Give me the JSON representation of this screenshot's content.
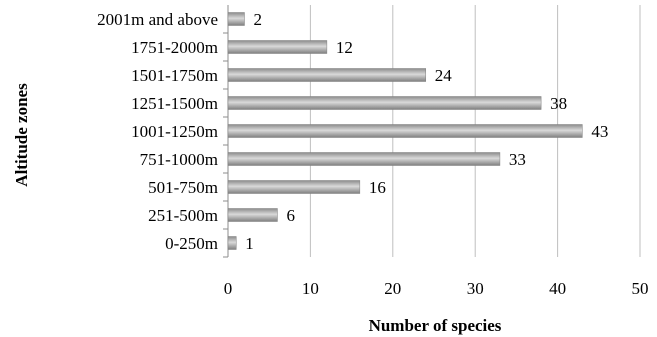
{
  "chart_data": {
    "type": "bar",
    "orientation": "horizontal",
    "categories": [
      "0-250m",
      "251-500m",
      "501-750m",
      "751-1000m",
      "1001-1250m",
      "1251-1500m",
      "1501-1750m",
      "1751-2000m",
      "2001m and above"
    ],
    "values": [
      1,
      6,
      16,
      33,
      43,
      38,
      24,
      12,
      2
    ],
    "xlabel": "Number of species",
    "ylabel": "Altitude zones",
    "xlim": [
      0,
      50
    ],
    "xticks": [
      0,
      10,
      20,
      30,
      40,
      50
    ],
    "grid": "vertical",
    "legend": "none",
    "bar_color": "#a6a6a6"
  }
}
